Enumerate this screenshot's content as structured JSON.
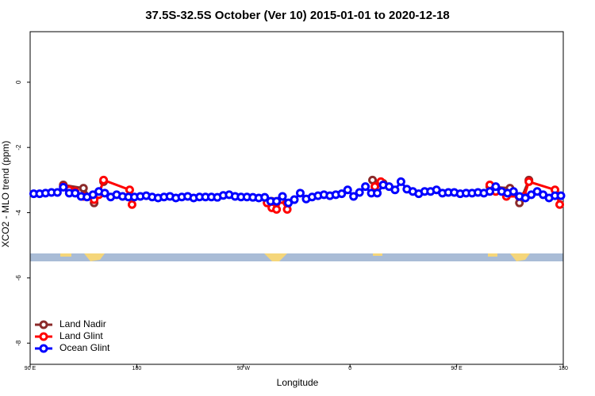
{
  "chart_data": {
    "type": "line",
    "title": "37.5S-32.5S October (Ver 10)   2015-01-01 to 2020-12-18",
    "x_label": "Longitude",
    "y_label": "XCO2 - MLO trend (ppm)",
    "xlim": [
      90,
      540
    ],
    "xticks": [
      {
        "value": 90,
        "label": "90 E"
      },
      {
        "value": 180,
        "label": "180"
      },
      {
        "value": 270,
        "label": "90 W"
      },
      {
        "value": 360,
        "label": "0"
      },
      {
        "value": 450,
        "label": "90 E"
      },
      {
        "value": 540,
        "label": "180"
      }
    ],
    "ylim": [
      -8.65,
      1.55
    ],
    "yticks": [
      0,
      -2,
      -4,
      -6,
      -8
    ],
    "legend_position": "bottom-left",
    "series": [
      {
        "name": "Land Nadir",
        "color": "#8b2a2a",
        "x": [
          118,
          135,
          144,
          152,
          null,
          294,
          null,
          379,
          388,
          null,
          478,
          495,
          503,
          511
        ],
        "values": [
          -3.15,
          -3.25,
          -3.7,
          -3.05,
          null,
          -3.65,
          null,
          -3.0,
          -3.1,
          null,
          -3.2,
          -3.25,
          -3.7,
          -3.0
        ]
      },
      {
        "name": "Land Glint",
        "color": "#ff0000",
        "x": [
          118,
          123,
          128,
          135,
          144,
          148,
          152,
          174,
          176,
          null,
          290,
          294,
          298,
          302,
          307,
          null,
          381,
          386,
          null,
          478,
          483,
          492,
          507,
          511,
          533,
          537
        ],
        "values": [
          -3.2,
          -3.3,
          -3.35,
          -3.5,
          -3.6,
          -3.45,
          -3.0,
          -3.3,
          -3.75,
          null,
          -3.7,
          -3.85,
          -3.9,
          -3.6,
          -3.9,
          null,
          -3.2,
          -3.05,
          null,
          -3.15,
          -3.35,
          -3.5,
          -3.5,
          -3.05,
          -3.3,
          -3.75
        ]
      },
      {
        "name": "Ocean Glint",
        "color": "#0000ff",
        "x": [
          93,
          98,
          103,
          108,
          113,
          118,
          123,
          128,
          133,
          138,
          143,
          148,
          153,
          158,
          163,
          168,
          173,
          178,
          183,
          188,
          193,
          198,
          203,
          208,
          213,
          218,
          223,
          228,
          233,
          238,
          243,
          248,
          253,
          258,
          263,
          268,
          273,
          278,
          283,
          288,
          293,
          298,
          303,
          308,
          313,
          318,
          323,
          328,
          333,
          338,
          343,
          348,
          353,
          358,
          363,
          368,
          373,
          378,
          383,
          388,
          393,
          398,
          403,
          408,
          413,
          418,
          423,
          428,
          433,
          438,
          443,
          448,
          453,
          458,
          463,
          468,
          473,
          478,
          483,
          488,
          493,
          498,
          503,
          508,
          513,
          518,
          523,
          528,
          533,
          538
        ],
        "values": [
          -3.42,
          -3.42,
          -3.4,
          -3.38,
          -3.38,
          -3.22,
          -3.4,
          -3.4,
          -3.5,
          -3.52,
          -3.45,
          -3.35,
          -3.4,
          -3.52,
          -3.45,
          -3.5,
          -3.52,
          -3.52,
          -3.5,
          -3.48,
          -3.52,
          -3.55,
          -3.52,
          -3.5,
          -3.55,
          -3.52,
          -3.5,
          -3.55,
          -3.52,
          -3.52,
          -3.52,
          -3.53,
          -3.47,
          -3.45,
          -3.5,
          -3.52,
          -3.52,
          -3.53,
          -3.55,
          -3.53,
          -3.65,
          -3.65,
          -3.5,
          -3.7,
          -3.6,
          -3.4,
          -3.58,
          -3.52,
          -3.48,
          -3.45,
          -3.48,
          -3.45,
          -3.42,
          -3.3,
          -3.5,
          -3.38,
          -3.2,
          -3.4,
          -3.4,
          -3.15,
          -3.2,
          -3.3,
          -3.05,
          -3.28,
          -3.35,
          -3.42,
          -3.35,
          -3.35,
          -3.3,
          -3.4,
          -3.38,
          -3.38,
          -3.42,
          -3.4,
          -3.4,
          -3.38,
          -3.4,
          -3.35,
          -3.2,
          -3.35,
          -3.4,
          -3.35,
          -3.5,
          -3.55,
          -3.45,
          -3.35,
          -3.45,
          -3.55,
          -3.48,
          -3.48
        ]
      }
    ]
  }
}
